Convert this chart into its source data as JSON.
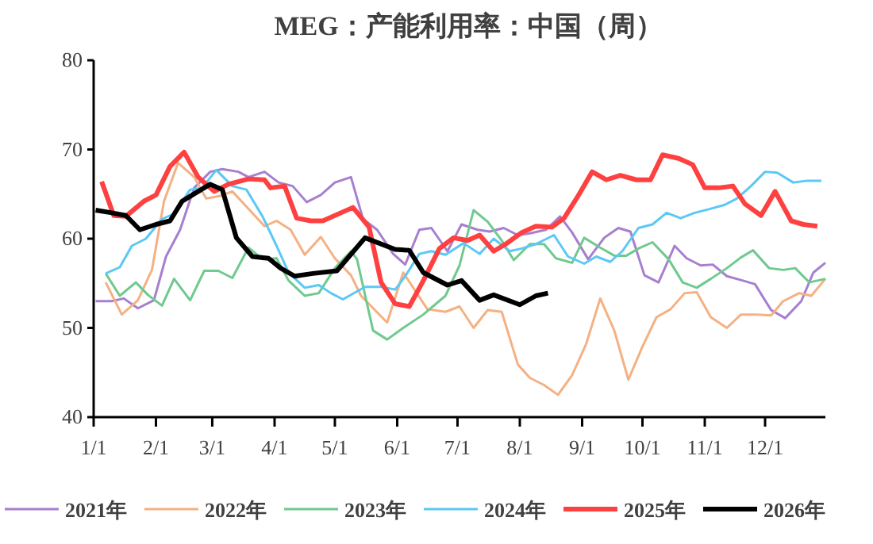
{
  "chart_data": {
    "type": "line",
    "title": "MEG：产能利用率：中国（周）",
    "xlim": [
      "--01-01",
      "--12-31"
    ],
    "xticks": [
      {
        "value": "--01-01",
        "label": "1/1"
      },
      {
        "value": "--02-01",
        "label": "2/1"
      },
      {
        "value": "--03-01",
        "label": "3/1"
      },
      {
        "value": "--04-01",
        "label": "4/1"
      },
      {
        "value": "--05-01",
        "label": "5/1"
      },
      {
        "value": "--06-01",
        "label": "6/1"
      },
      {
        "value": "--07-01",
        "label": "7/1"
      },
      {
        "value": "--08-01",
        "label": "8/1"
      },
      {
        "value": "--09-01",
        "label": "9/1"
      },
      {
        "value": "--10-01",
        "label": "10/1"
      },
      {
        "value": "--11-01",
        "label": "11/1"
      },
      {
        "value": "--12-01",
        "label": "12/1"
      }
    ],
    "ylim": [
      40,
      80
    ],
    "yticks": [
      40,
      50,
      60,
      70,
      80
    ],
    "grid": false,
    "legend": "bottom",
    "marker": "none",
    "line_style": "solid",
    "series": [
      {
        "name": "2021年",
        "color": "#a77fcf",
        "x": [
          "--01-02",
          "--01-10",
          "--01-16",
          "--01-23",
          "--01-31",
          "--02-06",
          "--02-13",
          "--02-20",
          "--02-28",
          "--03-06",
          "--03-14",
          "--03-19",
          "--03-27",
          "--04-03",
          "--04-10",
          "--04-17",
          "--04-24",
          "--05-01",
          "--05-09",
          "--05-15",
          "--05-22",
          "--05-30",
          "--06-05",
          "--06-12",
          "--06-18",
          "--06-26",
          "--07-03",
          "--07-11",
          "--07-17",
          "--07-24",
          "--07-31",
          "--08-06",
          "--08-14",
          "--08-21",
          "--08-27",
          "--09-04",
          "--09-12",
          "--09-19",
          "--09-25",
          "--10-02",
          "--10-09",
          "--10-17",
          "--10-23",
          "--10-30",
          "--11-05",
          "--11-12",
          "--11-20",
          "--11-26",
          "--12-04",
          "--12-11",
          "--12-19",
          "--12-25",
          "--12-31"
        ],
        "values": [
          53,
          53,
          53.3,
          52.2,
          53.1,
          58,
          61,
          65.7,
          67.5,
          67.8,
          67.5,
          66.9,
          67.5,
          66.3,
          65.9,
          64.1,
          64.9,
          66.3,
          66.9,
          62.2,
          61,
          58.3,
          57.1,
          61,
          61.2,
          58.6,
          61.6,
          61,
          60.8,
          61.2,
          60.4,
          60.6,
          61,
          62.5,
          60.7,
          57.7,
          60.1,
          61.2,
          60.8,
          55.9,
          55.1,
          59.2,
          57.8,
          57,
          57.1,
          55.8,
          55.3,
          54.9,
          52,
          51.1,
          53,
          56.2,
          57.3
        ]
      },
      {
        "name": "2022年",
        "color": "#f4b183",
        "x": [
          "--01-07",
          "--01-15",
          "--01-23",
          "--01-30",
          "--02-05",
          "--02-12",
          "--02-20",
          "--02-26",
          "--03-05",
          "--03-11",
          "--03-18",
          "--03-27",
          "--04-02",
          "--04-09",
          "--04-16",
          "--04-24",
          "--05-01",
          "--05-09",
          "--05-14",
          "--05-27",
          "--06-04",
          "--06-16",
          "--06-25",
          "--07-02",
          "--07-09",
          "--07-16",
          "--07-23",
          "--07-31",
          "--08-06",
          "--08-13",
          "--08-20",
          "--08-27",
          "--09-03",
          "--09-10",
          "--09-17",
          "--09-24",
          "--10-01",
          "--10-08",
          "--10-15",
          "--10-22",
          "--10-28",
          "--11-04",
          "--11-12",
          "--11-19",
          "--11-26",
          "--12-04",
          "--12-10",
          "--12-18",
          "--12-24",
          "--12-31"
        ],
        "values": [
          55.1,
          51.5,
          53.1,
          56.5,
          64.2,
          68.5,
          66.9,
          64.5,
          64.8,
          65.3,
          63.6,
          61.4,
          62,
          61,
          58.2,
          60.2,
          57.8,
          55.9,
          53.6,
          50.6,
          56.2,
          52.1,
          51.8,
          52.4,
          50,
          52,
          51.8,
          45.9,
          44.4,
          43.6,
          42.5,
          44.7,
          48.2,
          53.3,
          49.7,
          44.2,
          47.9,
          51.2,
          52.1,
          53.9,
          54,
          51.2,
          50,
          51.5,
          51.5,
          51.4,
          53,
          53.9,
          53.6,
          55.5
        ]
      },
      {
        "name": "2023年",
        "color": "#70c98f",
        "x": [
          "--01-07",
          "--01-14",
          "--01-22",
          "--01-28",
          "--02-04",
          "--02-10",
          "--02-18",
          "--02-25",
          "--03-04",
          "--03-11",
          "--03-19",
          "--03-26",
          "--04-02",
          "--04-08",
          "--04-16",
          "--04-23",
          "--05-01",
          "--05-09",
          "--05-12",
          "--05-20",
          "--05-27",
          "--06-04",
          "--06-14",
          "--06-25",
          "--07-02",
          "--07-09",
          "--07-16",
          "--07-23",
          "--07-29",
          "--08-06",
          "--08-13",
          "--08-19",
          "--08-27",
          "--09-02",
          "--09-10",
          "--09-17",
          "--09-23",
          "--09-29",
          "--10-06",
          "--10-14",
          "--10-21",
          "--10-28",
          "--11-04",
          "--11-12",
          "--11-19",
          "--11-25",
          "--12-03",
          "--12-10",
          "--12-16",
          "--12-23",
          "--12-31"
        ],
        "values": [
          56.1,
          53.6,
          55.1,
          53.7,
          52.5,
          55.5,
          53.1,
          56.4,
          56.4,
          55.6,
          59,
          57.7,
          57.8,
          55.3,
          53.6,
          53.9,
          56.7,
          58.6,
          57.7,
          49.7,
          48.7,
          50,
          51.5,
          53.6,
          57,
          63.2,
          61.9,
          59.8,
          57.6,
          59.4,
          59.4,
          57.8,
          57.3,
          60.1,
          59,
          58.1,
          58.1,
          58.9,
          59.6,
          57.7,
          55.1,
          54.5,
          55.5,
          56.7,
          57.9,
          58.7,
          56.7,
          56.5,
          56.7,
          55.1,
          55.5
        ]
      },
      {
        "name": "2024年",
        "color": "#5bc8f5",
        "x": [
          "--01-07",
          "--01-14",
          "--01-20",
          "--01-27",
          "--02-04",
          "--02-10",
          "--02-18",
          "--02-24",
          "--03-03",
          "--03-11",
          "--03-18",
          "--03-26",
          "--04-02",
          "--04-08",
          "--04-16",
          "--04-23",
          "--04-29",
          "--05-05",
          "--05-16",
          "--05-24",
          "--05-31",
          "--06-05",
          "--06-12",
          "--06-18",
          "--06-25",
          "--07-04",
          "--07-12",
          "--07-19",
          "--07-27",
          "--08-02",
          "--08-09",
          "--08-18",
          "--08-25",
          "--09-02",
          "--09-08",
          "--09-15",
          "--09-21",
          "--09-29",
          "--10-06",
          "--10-13",
          "--10-20",
          "--10-27",
          "--11-03",
          "--11-11",
          "--11-17",
          "--11-24",
          "--12-01",
          "--12-07",
          "--12-15",
          "--12-22",
          "--12-29"
        ],
        "values": [
          56.1,
          56.8,
          59.2,
          60,
          62.2,
          62.8,
          65.5,
          65.7,
          67.7,
          65.9,
          65.5,
          62.5,
          59.2,
          56.2,
          54.5,
          54.8,
          53.9,
          53.2,
          54.6,
          54.6,
          54.3,
          55.8,
          58.3,
          58.6,
          58.2,
          59.5,
          58.3,
          60,
          58.6,
          58.9,
          59.4,
          60.4,
          58,
          57.2,
          58,
          57.4,
          58.6,
          61.2,
          61.6,
          62.9,
          62.3,
          62.9,
          63.3,
          63.8,
          64.5,
          65.9,
          67.5,
          67.4,
          66.3,
          66.5,
          66.5
        ]
      },
      {
        "name": "2025年",
        "color": "#ff4040",
        "x": [
          "--01-05",
          "--01-11",
          "--01-17",
          "--01-26",
          "--02-01",
          "--02-08",
          "--02-15",
          "--02-22",
          "--03-02",
          "--03-09",
          "--03-19",
          "--03-27",
          "--03-30",
          "--04-06",
          "--04-12",
          "--04-19",
          "--04-25",
          "--05-10",
          "--05-18",
          "--05-24",
          "--05-31",
          "--06-07",
          "--06-14",
          "--06-22",
          "--06-29",
          "--07-06",
          "--07-12",
          "--07-19",
          "--07-25",
          "--08-02",
          "--08-09",
          "--08-17",
          "--08-23",
          "--08-30",
          "--09-06",
          "--09-13",
          "--09-20",
          "--09-28",
          "--10-05",
          "--10-11",
          "--10-19",
          "--10-26",
          "--11-01",
          "--11-08",
          "--11-15",
          "--11-21",
          "--11-29",
          "--12-06",
          "--12-14",
          "--12-20",
          "--12-27"
        ],
        "values": [
          66.4,
          62.6,
          62.5,
          64.2,
          64.9,
          68.1,
          69.7,
          66.9,
          65.3,
          66.1,
          66.7,
          66.6,
          65.7,
          65.9,
          62.3,
          62,
          62,
          63.5,
          61.3,
          55.1,
          52.7,
          52.4,
          55.3,
          58.9,
          60.1,
          59.8,
          60.4,
          58.6,
          59.4,
          60.7,
          61.4,
          61.3,
          62.3,
          64.8,
          67.5,
          66.6,
          67.1,
          66.6,
          66.6,
          69.4,
          69,
          68.3,
          65.7,
          65.7,
          65.9,
          63.9,
          62.6,
          65.3,
          62,
          61.6,
          61.4
        ]
      },
      {
        "name": "2026年",
        "color": "#000000",
        "x": [
          "--01-02",
          "--01-10",
          "--01-17",
          "--01-24",
          "--02-01",
          "--02-08",
          "--02-14",
          "--02-22",
          "--02-28",
          "--03-06",
          "--03-13",
          "--03-21",
          "--03-29",
          "--04-04",
          "--04-11",
          "--04-20",
          "--05-02",
          "--05-16",
          "--05-31",
          "--06-07",
          "--06-14",
          "--06-26",
          "--07-03",
          "--07-12",
          "--07-19",
          "--08-01",
          "--08-09",
          "--08-15"
        ],
        "values": [
          63.2,
          62.9,
          62.6,
          61,
          61.6,
          62,
          64.2,
          65.3,
          66.1,
          65.5,
          60.1,
          58,
          57.8,
          56.7,
          55.8,
          56.1,
          56.4,
          60.1,
          58.8,
          58.7,
          56.2,
          54.8,
          55.3,
          53.1,
          53.7,
          52.6,
          53.6,
          53.9
        ]
      }
    ]
  }
}
